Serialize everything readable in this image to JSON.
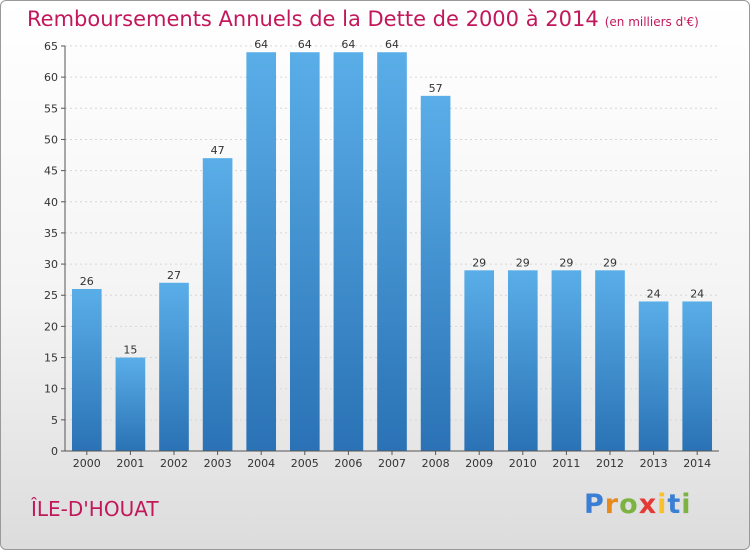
{
  "header": {
    "title": "Remboursements Annuels de la Dette de 2000 à 2014",
    "subtitle": "(en milliers d'€)"
  },
  "footer": {
    "commune": "ÎLE-D'HOUAT",
    "logo_letters": [
      "P",
      "r",
      "o",
      "x",
      "i",
      "t",
      "i"
    ],
    "logo_colors": [
      "#3b7fd4",
      "#e8891b",
      "#7cb342",
      "#e53935",
      "#fbc02d",
      "#3b7fd4",
      "#7cb342"
    ]
  },
  "chart_data": {
    "type": "bar",
    "title": "Remboursements Annuels de la Dette de 2000 à 2014",
    "subtitle": "(en milliers d'€)",
    "categories": [
      "2000",
      "2001",
      "2002",
      "2003",
      "2004",
      "2005",
      "2006",
      "2007",
      "2008",
      "2009",
      "2010",
      "2011",
      "2012",
      "2013",
      "2014"
    ],
    "values": [
      26,
      15,
      27,
      47,
      64,
      64,
      64,
      64,
      57,
      29,
      29,
      29,
      29,
      24,
      24
    ],
    "value_labels": [
      "26",
      "15",
      "27",
      "47",
      "64",
      "64",
      "64",
      "64",
      "57",
      "29",
      "29",
      "29",
      "29",
      "24",
      "24"
    ],
    "xlabel": "",
    "ylabel": "",
    "ylim": [
      0,
      65
    ],
    "yticks": [
      "0",
      "5",
      "10",
      "15",
      "20",
      "25",
      "30",
      "35",
      "40",
      "45",
      "50",
      "55",
      "60",
      "65"
    ],
    "grid": true,
    "bar_color_top": "#5aaee8",
    "bar_color_bottom": "#2a72b5"
  }
}
